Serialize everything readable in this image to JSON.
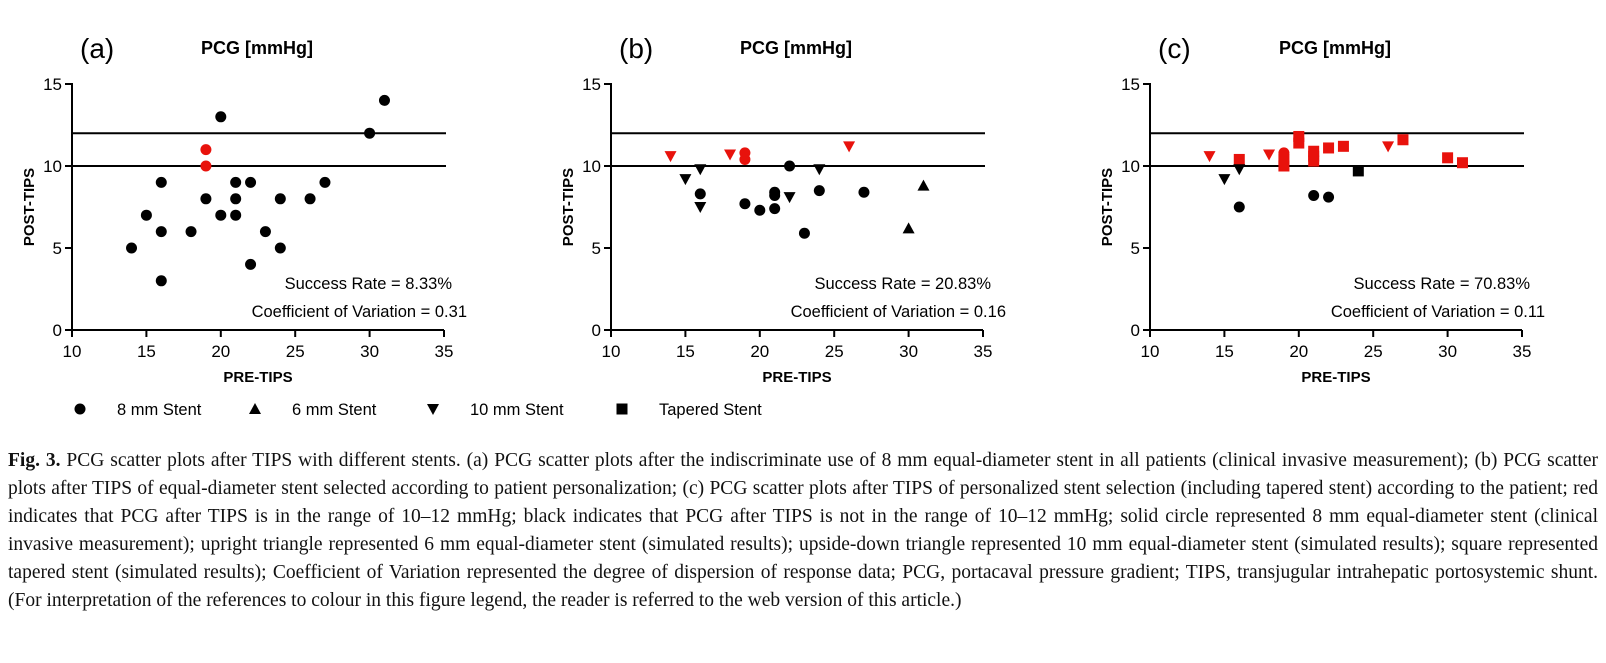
{
  "colors": {
    "red": "#e8120c",
    "black": "#000000"
  },
  "legend": [
    {
      "shape": "circle",
      "label": "8 mm Stent"
    },
    {
      "shape": "triangle-up",
      "label": "6 mm Stent"
    },
    {
      "shape": "triangle-down",
      "label": "10 mm Stent"
    },
    {
      "shape": "square",
      "label": "Tapered Stent"
    }
  ],
  "caption": {
    "label": "Fig. 3.",
    "text": "PCG scatter plots after TIPS with different stents. (a) PCG scatter plots after the indiscriminate use of 8 mm equal-diameter stent in all patients (clinical invasive measurement); (b) PCG scatter plots after TIPS of equal-diameter stent selected according to patient personalization; (c) PCG scatter plots after TIPS of personalized stent selection (including tapered stent) according to the patient; red indicates that PCG after TIPS is in the range of 10–12 mmHg; black indicates that PCG after TIPS is not in the range of 10–12 mmHg; solid circle represented 8 mm equal-diameter stent (clinical invasive measurement); upright triangle represented 6 mm equal-diameter stent (simulated results); upside-down triangle represented 10 mm equal-diameter stent (simulated results); square represented tapered stent (simulated results); Coefficient of Variation represented the degree of dispersion of response data; PCG, portacaval pressure gradient; TIPS, transjugular intrahepatic portosystemic shunt. (For interpretation of the references to colour in this figure legend, the reader is referred to the web version of this article.)"
  },
  "chart_data": [
    {
      "type": "scatter",
      "panel_label": "(a)",
      "title": "PCG [mmHg]",
      "xlabel": "PRE-TIPS",
      "ylabel": "POST-TIPS",
      "xlim": [
        10,
        35
      ],
      "ylim": [
        0,
        15
      ],
      "xticks": [
        10,
        15,
        20,
        25,
        30,
        35
      ],
      "yticks": [
        0,
        5,
        10,
        15
      ],
      "reference_lines_y": [
        10,
        12
      ],
      "annotations": [
        "Success Rate = 8.33%",
        "Coefficient of Variation = 0.31"
      ],
      "points": [
        {
          "x": 14,
          "y": 5,
          "shape": "circle",
          "color": "black"
        },
        {
          "x": 15,
          "y": 7,
          "shape": "circle",
          "color": "black"
        },
        {
          "x": 16,
          "y": 9,
          "shape": "circle",
          "color": "black"
        },
        {
          "x": 16,
          "y": 6,
          "shape": "circle",
          "color": "black"
        },
        {
          "x": 16,
          "y": 3,
          "shape": "circle",
          "color": "black"
        },
        {
          "x": 18,
          "y": 6,
          "shape": "circle",
          "color": "black"
        },
        {
          "x": 19,
          "y": 11,
          "shape": "circle",
          "color": "red"
        },
        {
          "x": 19,
          "y": 10,
          "shape": "circle",
          "color": "red"
        },
        {
          "x": 19,
          "y": 8,
          "shape": "circle",
          "color": "black"
        },
        {
          "x": 20,
          "y": 13,
          "shape": "circle",
          "color": "black"
        },
        {
          "x": 20,
          "y": 7,
          "shape": "circle",
          "color": "black"
        },
        {
          "x": 21,
          "y": 9,
          "shape": "circle",
          "color": "black"
        },
        {
          "x": 21,
          "y": 8,
          "shape": "circle",
          "color": "black"
        },
        {
          "x": 21,
          "y": 7,
          "shape": "circle",
          "color": "black"
        },
        {
          "x": 22,
          "y": 9,
          "shape": "circle",
          "color": "black"
        },
        {
          "x": 22,
          "y": 4,
          "shape": "circle",
          "color": "black"
        },
        {
          "x": 23,
          "y": 6,
          "shape": "circle",
          "color": "black"
        },
        {
          "x": 24,
          "y": 8,
          "shape": "circle",
          "color": "black"
        },
        {
          "x": 24,
          "y": 5,
          "shape": "circle",
          "color": "black"
        },
        {
          "x": 26,
          "y": 8,
          "shape": "circle",
          "color": "black"
        },
        {
          "x": 27,
          "y": 9,
          "shape": "circle",
          "color": "black"
        },
        {
          "x": 30,
          "y": 12,
          "shape": "circle",
          "color": "black"
        },
        {
          "x": 31,
          "y": 14,
          "shape": "circle",
          "color": "black"
        }
      ]
    },
    {
      "type": "scatter",
      "panel_label": "(b)",
      "title": "PCG [mmHg]",
      "xlabel": "PRE-TIPS",
      "ylabel": "POST-TIPS",
      "xlim": [
        10,
        35
      ],
      "ylim": [
        0,
        15
      ],
      "xticks": [
        10,
        15,
        20,
        25,
        30,
        35
      ],
      "yticks": [
        0,
        5,
        10,
        15
      ],
      "reference_lines_y": [
        10,
        12
      ],
      "annotations": [
        "Success Rate = 20.83%",
        "Coefficient of Variation = 0.16"
      ],
      "points": [
        {
          "x": 14,
          "y": 10.6,
          "shape": "triangle-down",
          "color": "red"
        },
        {
          "x": 15,
          "y": 9.2,
          "shape": "triangle-down",
          "color": "black"
        },
        {
          "x": 16,
          "y": 9.8,
          "shape": "triangle-down",
          "color": "black"
        },
        {
          "x": 16,
          "y": 8.3,
          "shape": "circle",
          "color": "black"
        },
        {
          "x": 16,
          "y": 7.5,
          "shape": "triangle-down",
          "color": "black"
        },
        {
          "x": 18,
          "y": 10.7,
          "shape": "triangle-down",
          "color": "red"
        },
        {
          "x": 19,
          "y": 10.8,
          "shape": "circle",
          "color": "red"
        },
        {
          "x": 19,
          "y": 10.4,
          "shape": "circle",
          "color": "red"
        },
        {
          "x": 19,
          "y": 7.7,
          "shape": "circle",
          "color": "black"
        },
        {
          "x": 20,
          "y": 7.3,
          "shape": "circle",
          "color": "black"
        },
        {
          "x": 21,
          "y": 8.4,
          "shape": "circle",
          "color": "black"
        },
        {
          "x": 21,
          "y": 8.2,
          "shape": "circle",
          "color": "black"
        },
        {
          "x": 21,
          "y": 7.4,
          "shape": "circle",
          "color": "black"
        },
        {
          "x": 22,
          "y": 10.0,
          "shape": "circle",
          "color": "black"
        },
        {
          "x": 22,
          "y": 8.1,
          "shape": "triangle-down",
          "color": "black"
        },
        {
          "x": 23,
          "y": 5.9,
          "shape": "circle",
          "color": "black"
        },
        {
          "x": 24,
          "y": 9.8,
          "shape": "triangle-down",
          "color": "black"
        },
        {
          "x": 24,
          "y": 8.5,
          "shape": "circle",
          "color": "black"
        },
        {
          "x": 26,
          "y": 11.2,
          "shape": "triangle-down",
          "color": "red"
        },
        {
          "x": 27,
          "y": 8.4,
          "shape": "circle",
          "color": "black"
        },
        {
          "x": 30,
          "y": 6.2,
          "shape": "triangle-up",
          "color": "black"
        },
        {
          "x": 31,
          "y": 8.8,
          "shape": "triangle-up",
          "color": "black"
        }
      ]
    },
    {
      "type": "scatter",
      "panel_label": "(c)",
      "title": "PCG [mmHg]",
      "xlabel": "PRE-TIPS",
      "ylabel": "POST-TIPS",
      "xlim": [
        10,
        35
      ],
      "ylim": [
        0,
        15
      ],
      "xticks": [
        10,
        15,
        20,
        25,
        30,
        35
      ],
      "yticks": [
        0,
        5,
        10,
        15
      ],
      "reference_lines_y": [
        10,
        12
      ],
      "annotations": [
        "Success Rate = 70.83%",
        "Coefficient of Variation = 0.11"
      ],
      "points": [
        {
          "x": 14,
          "y": 10.6,
          "shape": "triangle-down",
          "color": "red"
        },
        {
          "x": 15,
          "y": 9.2,
          "shape": "triangle-down",
          "color": "black"
        },
        {
          "x": 16,
          "y": 10.4,
          "shape": "square",
          "color": "red"
        },
        {
          "x": 16,
          "y": 9.8,
          "shape": "triangle-down",
          "color": "black"
        },
        {
          "x": 16,
          "y": 7.5,
          "shape": "circle",
          "color": "black"
        },
        {
          "x": 18,
          "y": 10.7,
          "shape": "triangle-down",
          "color": "red"
        },
        {
          "x": 19,
          "y": 10.8,
          "shape": "circle",
          "color": "red"
        },
        {
          "x": 19,
          "y": 10.4,
          "shape": "square",
          "color": "red"
        },
        {
          "x": 19,
          "y": 10.0,
          "shape": "square",
          "color": "red"
        },
        {
          "x": 20,
          "y": 11.8,
          "shape": "square",
          "color": "red"
        },
        {
          "x": 20,
          "y": 11.4,
          "shape": "square",
          "color": "red"
        },
        {
          "x": 21,
          "y": 10.9,
          "shape": "square",
          "color": "red"
        },
        {
          "x": 21,
          "y": 10.6,
          "shape": "square",
          "color": "red"
        },
        {
          "x": 21,
          "y": 10.3,
          "shape": "square",
          "color": "red"
        },
        {
          "x": 21,
          "y": 8.2,
          "shape": "circle",
          "color": "black"
        },
        {
          "x": 22,
          "y": 11.1,
          "shape": "square",
          "color": "red"
        },
        {
          "x": 22,
          "y": 8.1,
          "shape": "circle",
          "color": "black"
        },
        {
          "x": 23,
          "y": 11.2,
          "shape": "square",
          "color": "red"
        },
        {
          "x": 24,
          "y": 9.7,
          "shape": "square",
          "color": "black"
        },
        {
          "x": 26,
          "y": 11.2,
          "shape": "triangle-down",
          "color": "red"
        },
        {
          "x": 27,
          "y": 11.6,
          "shape": "square",
          "color": "red"
        },
        {
          "x": 30,
          "y": 10.5,
          "shape": "square",
          "color": "red"
        },
        {
          "x": 31,
          "y": 10.2,
          "shape": "square",
          "color": "red"
        }
      ]
    }
  ]
}
